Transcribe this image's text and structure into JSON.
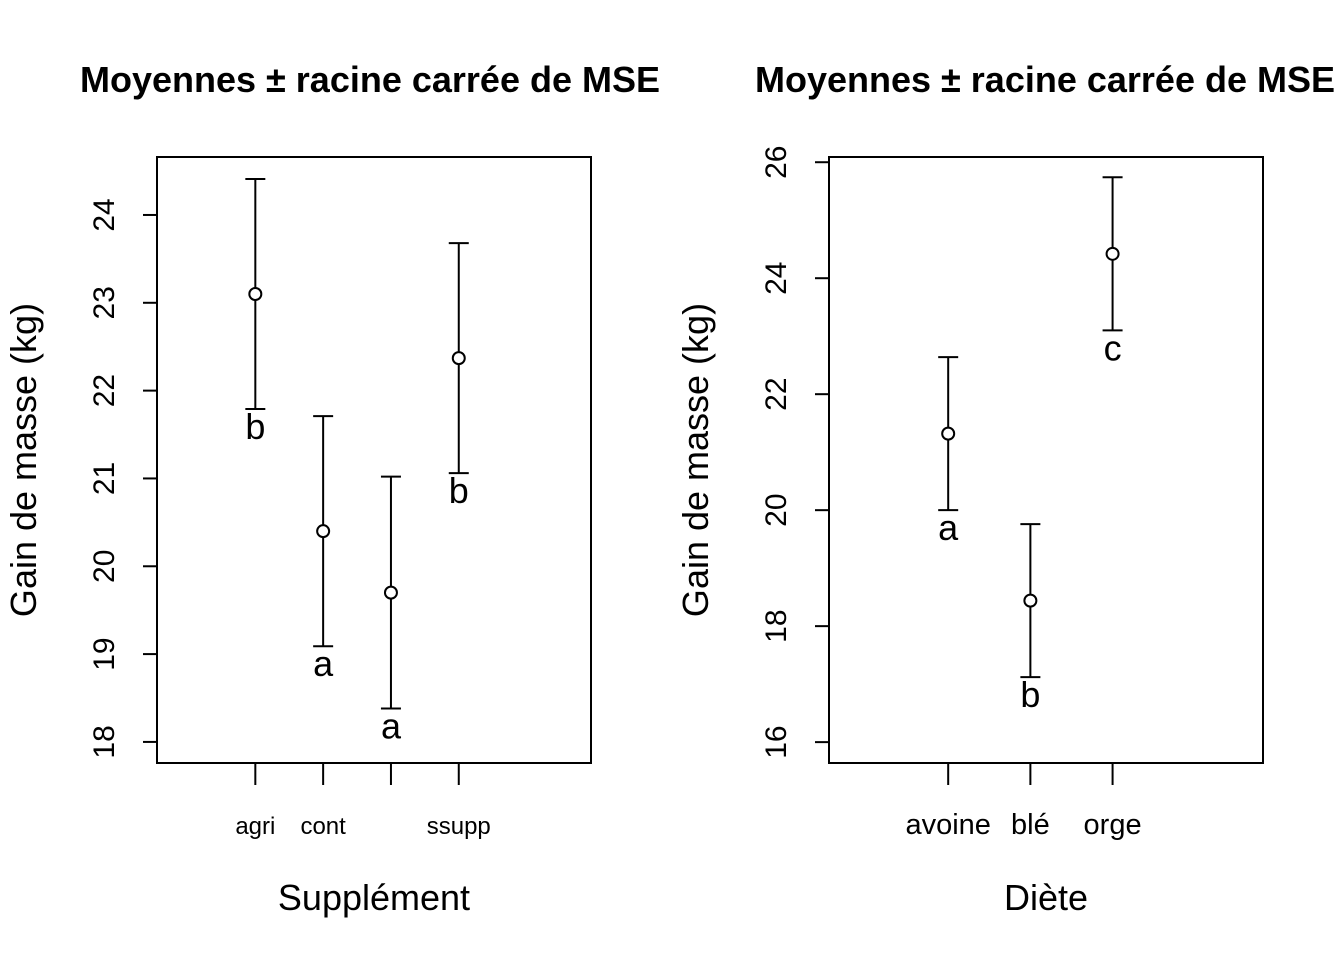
{
  "chart_data": [
    {
      "type": "scatter",
      "title": "Moyennes ± racine carrée de MSE",
      "xlabel": "Supplément",
      "ylabel": "Gain de masse (kg)",
      "categories": [
        "agri",
        "cont",
        "",
        "ssupp"
      ],
      "mean": [
        23.1,
        20.4,
        19.7,
        22.37
      ],
      "upper": [
        24.41,
        21.71,
        21.02,
        23.68
      ],
      "lower": [
        21.79,
        19.09,
        18.38,
        21.06
      ],
      "letters": [
        "b",
        "a",
        "a",
        "b"
      ],
      "yticks": [
        18,
        19,
        20,
        21,
        22,
        23,
        24
      ],
      "ylim": [
        17.76,
        24.66
      ],
      "xlim": [
        0.0,
        6.4
      ],
      "xpos": [
        1.45,
        2.45,
        3.45,
        4.45
      ],
      "grid": false
    },
    {
      "type": "scatter",
      "title": "Moyennes ± racine carrée de MSE",
      "xlabel": "Diète",
      "ylabel": "Gain de masse (kg)",
      "categories": [
        "avoine",
        "blé",
        "orge"
      ],
      "mean": [
        21.32,
        18.44,
        24.42
      ],
      "upper": [
        22.64,
        19.76,
        25.74
      ],
      "lower": [
        20.0,
        17.12,
        23.1
      ],
      "letters": [
        "a",
        "b",
        "c"
      ],
      "yticks": [
        16,
        18,
        20,
        22,
        24,
        26
      ],
      "ylim": [
        15.64,
        26.09
      ],
      "xlim": [
        0.0,
        5.28
      ],
      "xpos": [
        1.45,
        2.45,
        3.45
      ],
      "grid": false
    }
  ]
}
